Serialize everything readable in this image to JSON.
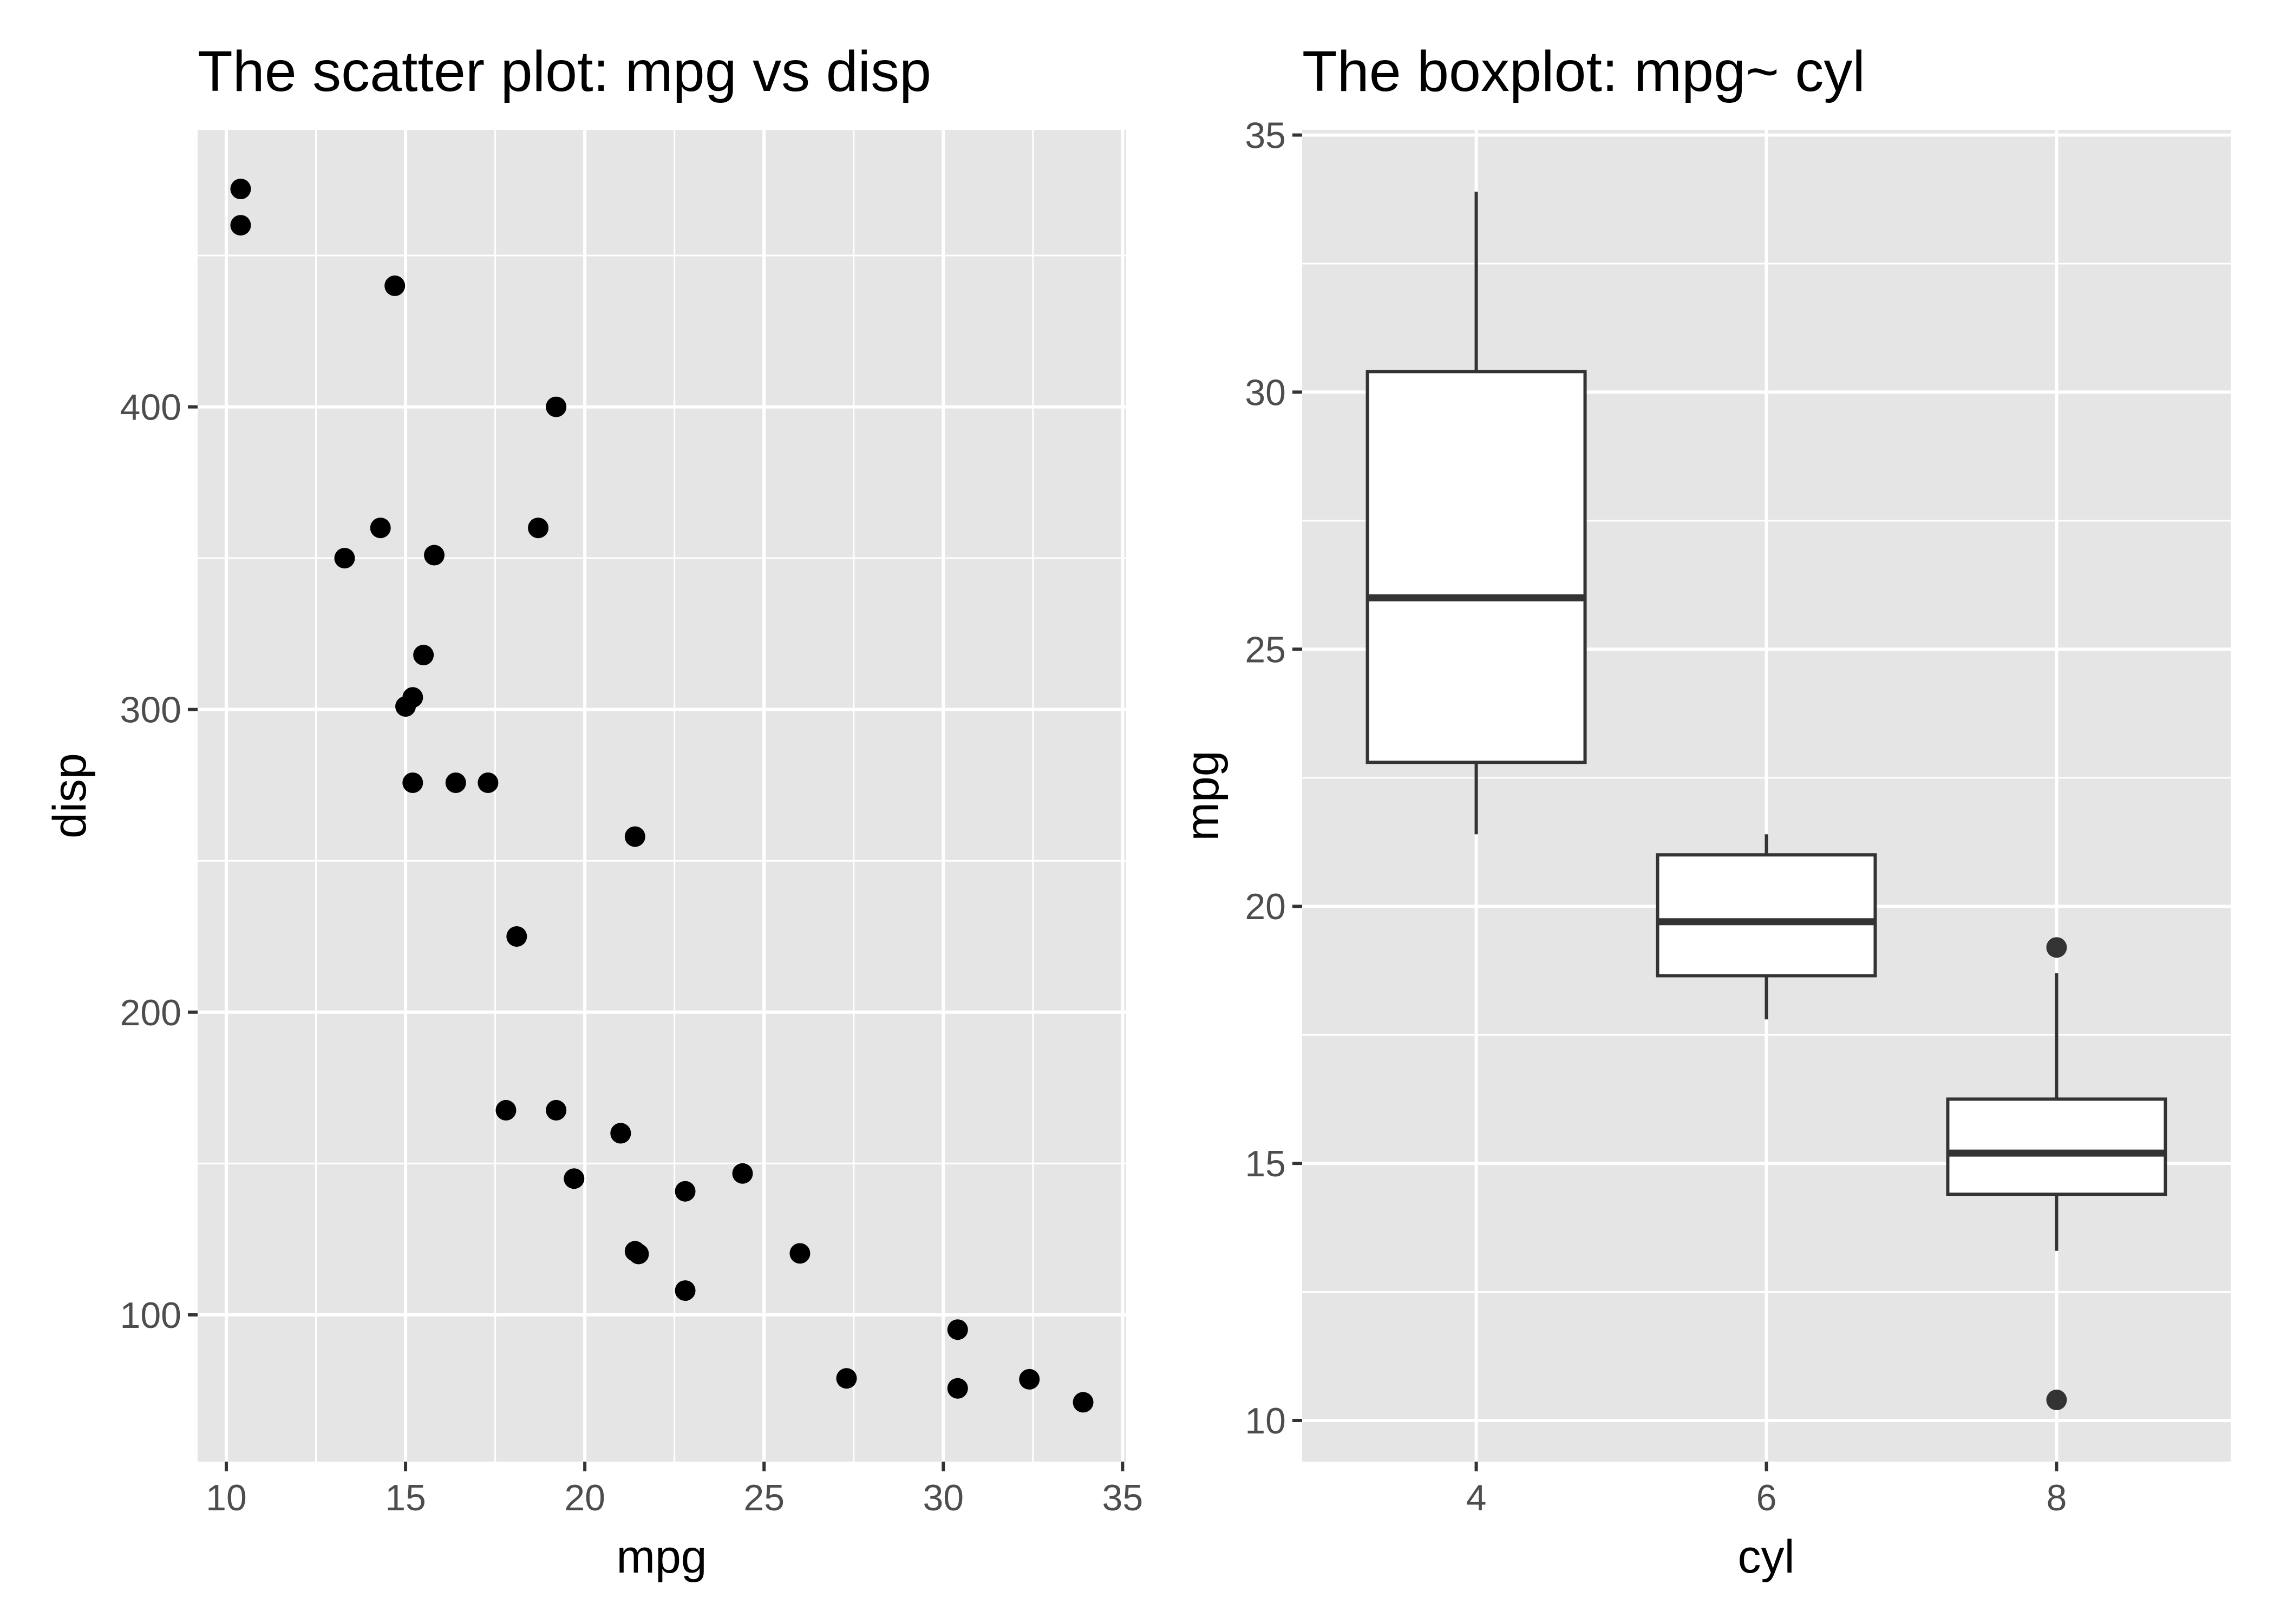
{
  "chart_data": [
    {
      "type": "scatter",
      "title": "The scatter plot: mpg vs disp",
      "xlabel": "mpg",
      "ylabel": "disp",
      "xlim": [
        9.2,
        35.1
      ],
      "ylim": [
        51.5,
        491.5
      ],
      "x_ticks": [
        10,
        15,
        20,
        25,
        30,
        35
      ],
      "y_ticks": [
        100,
        200,
        300,
        400
      ],
      "x_tick_labels": [
        "10",
        "15",
        "20",
        "25",
        "30",
        "35"
      ],
      "y_tick_labels": [
        "100",
        "200",
        "300",
        "400"
      ],
      "grid": true,
      "point_color": "#000000",
      "points": [
        {
          "x": 21.0,
          "y": 160
        },
        {
          "x": 21.0,
          "y": 160
        },
        {
          "x": 22.8,
          "y": 108
        },
        {
          "x": 21.4,
          "y": 258
        },
        {
          "x": 18.7,
          "y": 360
        },
        {
          "x": 18.1,
          "y": 225
        },
        {
          "x": 14.3,
          "y": 360
        },
        {
          "x": 24.4,
          "y": 146.7
        },
        {
          "x": 22.8,
          "y": 140.8
        },
        {
          "x": 19.2,
          "y": 167.6
        },
        {
          "x": 17.8,
          "y": 167.6
        },
        {
          "x": 16.4,
          "y": 275.8
        },
        {
          "x": 17.3,
          "y": 275.8
        },
        {
          "x": 15.2,
          "y": 275.8
        },
        {
          "x": 10.4,
          "y": 472
        },
        {
          "x": 10.4,
          "y": 460
        },
        {
          "x": 14.7,
          "y": 440
        },
        {
          "x": 32.4,
          "y": 78.7
        },
        {
          "x": 30.4,
          "y": 75.7
        },
        {
          "x": 33.9,
          "y": 71.1
        },
        {
          "x": 21.5,
          "y": 120.1
        },
        {
          "x": 15.5,
          "y": 318
        },
        {
          "x": 15.2,
          "y": 304
        },
        {
          "x": 13.3,
          "y": 350
        },
        {
          "x": 19.2,
          "y": 400
        },
        {
          "x": 27.3,
          "y": 79
        },
        {
          "x": 26.0,
          "y": 120.3
        },
        {
          "x": 30.4,
          "y": 95.1
        },
        {
          "x": 15.8,
          "y": 351
        },
        {
          "x": 19.7,
          "y": 145
        },
        {
          "x": 15.0,
          "y": 301
        },
        {
          "x": 21.4,
          "y": 121
        }
      ]
    },
    {
      "type": "boxplot",
      "title": "The boxplot:  mpg~ cyl",
      "xlabel": "cyl",
      "ylabel": "mpg",
      "categories": [
        "4",
        "6",
        "8"
      ],
      "ylim": [
        9.2,
        35.1
      ],
      "y_ticks": [
        10,
        15,
        20,
        25,
        30,
        35
      ],
      "y_tick_labels": [
        "10",
        "15",
        "20",
        "25",
        "30",
        "35"
      ],
      "grid": true,
      "box_fill": "#ffffff",
      "line_color": "#333333",
      "boxes": [
        {
          "category": "4",
          "whisker_low": 21.4,
          "q1": 22.8,
          "median": 26.0,
          "q3": 30.4,
          "whisker_high": 33.9,
          "outliers": []
        },
        {
          "category": "6",
          "whisker_low": 17.8,
          "q1": 18.65,
          "median": 19.7,
          "q3": 21.0,
          "whisker_high": 21.4,
          "outliers": []
        },
        {
          "category": "8",
          "whisker_low": 13.3,
          "q1": 14.4,
          "median": 15.2,
          "q3": 16.25,
          "whisker_high": 18.7,
          "outliers": [
            19.2,
            10.4
          ]
        }
      ]
    }
  ]
}
